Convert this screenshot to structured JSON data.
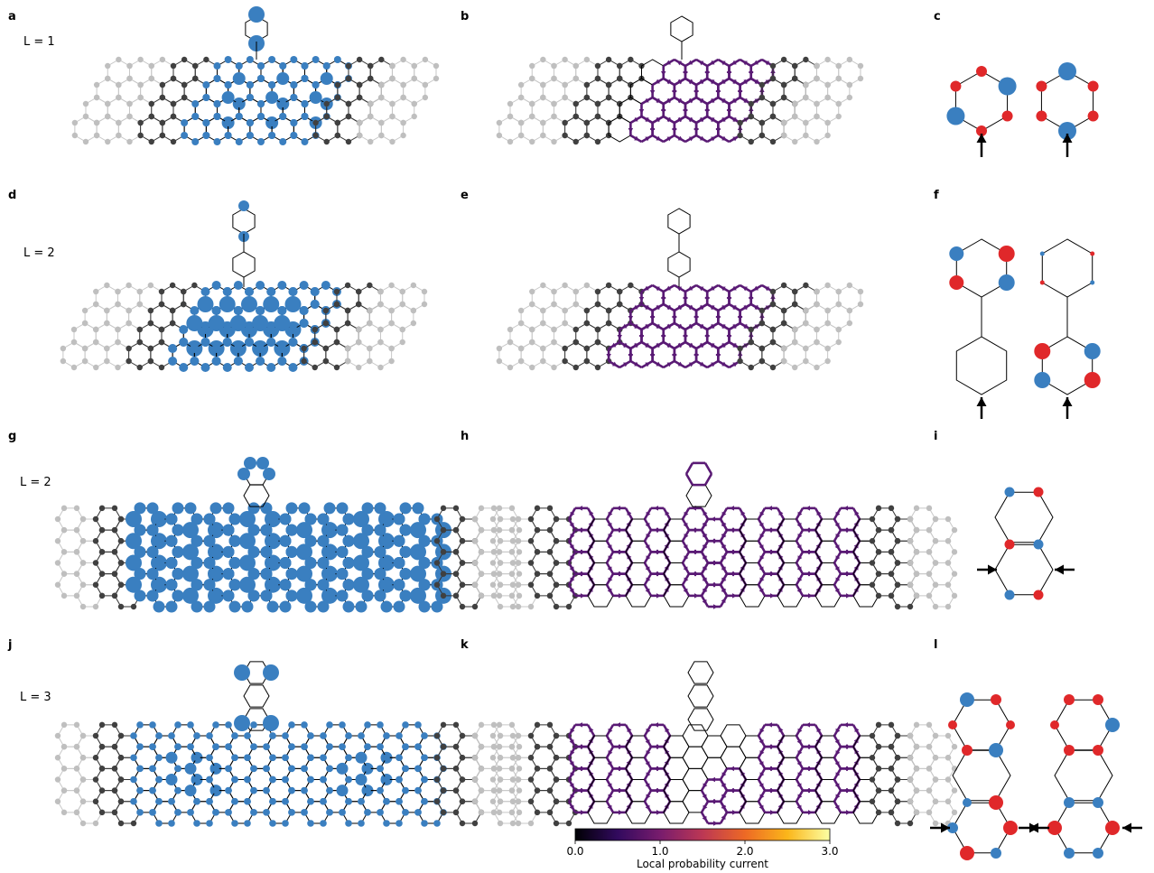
{
  "panels": [
    {
      "id": "a",
      "label": "a"
    },
    {
      "id": "b",
      "label": "b"
    },
    {
      "id": "c",
      "label": "c"
    },
    {
      "id": "d",
      "label": "d"
    },
    {
      "id": "e",
      "label": "e"
    },
    {
      "id": "f",
      "label": "f"
    },
    {
      "id": "g",
      "label": "g"
    },
    {
      "id": "h",
      "label": "h"
    },
    {
      "id": "i",
      "label": "i"
    },
    {
      "id": "j",
      "label": "j"
    },
    {
      "id": "k",
      "label": "k"
    },
    {
      "id": "l",
      "label": "l"
    }
  ],
  "row_labels": [
    "L = 1",
    "L = 2",
    "L = 2",
    "L = 3"
  ],
  "colorbar": {
    "label": "Local probability current",
    "ticks": [
      "0.0",
      "1.0",
      "2.0",
      "3.0"
    ],
    "min": 0.0,
    "max": 3.0,
    "colormap": [
      "#000004",
      "#320a5e",
      "#781c6d",
      "#bc3754",
      "#ed6925",
      "#fbb61a",
      "#fcffa4"
    ]
  },
  "colors": {
    "lead_site": "#bfbfbf",
    "contact_site": "#404040",
    "wavefunction_blue": "#3a7fc0",
    "wavefunction_red": "#e0282a",
    "current_arrow": "#5a1a75",
    "bond": "#000000"
  }
}
